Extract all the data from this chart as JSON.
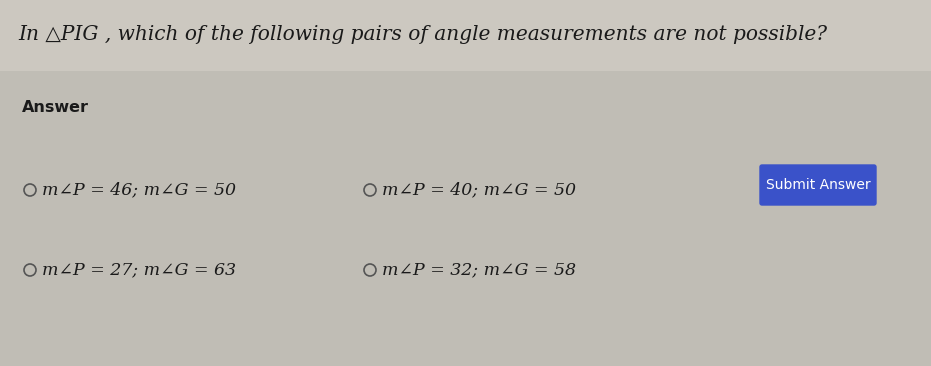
{
  "title": "In △PIG , which of the following pairs of angle measurements are not possible?",
  "title_fontsize": 14.5,
  "title_color": "#1a1a1a",
  "top_bg_color": "#ccc8c0",
  "answer_bg_color": "#c0bdb5",
  "answer_label": "Answer",
  "answer_fontsize": 11.5,
  "options": [
    "m∠P = 46; m∠G = 50",
    "m∠P = 40; m∠G = 50",
    "m∠P = 27; m∠G = 63",
    "m∠P = 32; m∠G = 58"
  ],
  "option_fontsize": 12.5,
  "option_color": "#1a1a1a",
  "submit_text": "Submit Answer",
  "submit_bg": "#3a52c9",
  "submit_text_color": "#ffffff",
  "submit_fontsize": 10,
  "fig_width": 9.31,
  "fig_height": 3.66,
  "dpi": 100
}
